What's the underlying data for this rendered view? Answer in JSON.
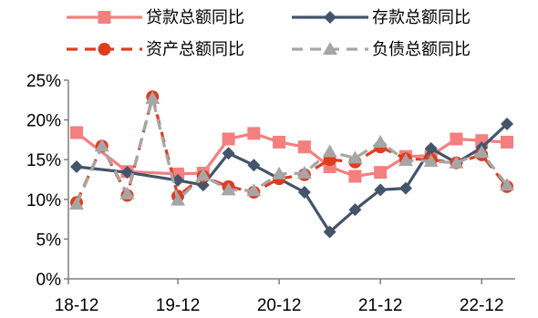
{
  "chart_data": {
    "type": "line",
    "title": "",
    "xlabel": "",
    "ylabel": "",
    "ylim": [
      0,
      25
    ],
    "yticks": [
      "0%",
      "5%",
      "10%",
      "15%",
      "20%",
      "25%"
    ],
    "xticks": [
      "18-12",
      "19-12",
      "20-12",
      "21-12",
      "22-12"
    ],
    "grid": false,
    "legend_position": "top",
    "x": [
      "18-12",
      "19-03",
      "19-06",
      "19-09",
      "19-12",
      "20-03",
      "20-06",
      "20-09",
      "20-12",
      "21-03",
      "21-06",
      "21-09",
      "21-12",
      "22-03",
      "22-06",
      "22-09",
      "22-12",
      "23-03"
    ],
    "series": [
      {
        "name": "贷款总额同比",
        "color": "#F47F7F",
        "style": "solid",
        "marker": "square",
        "points": [
          [
            0,
            18.4
          ],
          [
            2,
            13.5
          ],
          [
            4,
            13.2
          ],
          [
            5,
            13.3
          ],
          [
            6,
            17.6
          ],
          [
            7,
            18.3
          ],
          [
            8,
            17.2
          ],
          [
            9,
            16.6
          ],
          [
            10,
            14.1
          ],
          [
            11,
            12.9
          ],
          [
            12,
            13.4
          ],
          [
            13,
            15.4
          ],
          [
            14,
            15.5
          ],
          [
            15,
            17.6
          ],
          [
            16,
            17.4
          ],
          [
            17,
            17.2
          ]
        ]
      },
      {
        "name": "存款总额同比",
        "color": "#44546A",
        "style": "solid",
        "marker": "diamond",
        "points": [
          [
            0,
            14.1
          ],
          [
            2,
            13.4
          ],
          [
            4,
            12.4
          ],
          [
            5,
            11.8
          ],
          [
            6,
            15.8
          ],
          [
            7,
            14.3
          ],
          [
            8,
            12.6
          ],
          [
            9,
            10.9
          ],
          [
            10,
            5.9
          ],
          [
            11,
            8.7
          ],
          [
            12,
            11.2
          ],
          [
            13,
            11.4
          ],
          [
            14,
            16.4
          ],
          [
            15,
            14.6
          ],
          [
            16,
            16.5
          ],
          [
            17,
            19.5
          ]
        ]
      },
      {
        "name": "资产总额同比",
        "color": "#E03C1E",
        "style": "dashed",
        "marker": "circle",
        "points": [
          [
            0,
            9.6
          ],
          [
            1,
            16.7
          ],
          [
            2,
            10.5
          ],
          [
            3,
            22.9
          ],
          [
            4,
            10.4
          ],
          [
            5,
            12.9
          ],
          [
            6,
            11.6
          ],
          [
            7,
            10.9
          ],
          [
            8,
            12.6
          ],
          [
            9,
            13.1
          ],
          [
            10,
            15.0
          ],
          [
            11,
            14.7
          ],
          [
            12,
            16.6
          ],
          [
            13,
            15.1
          ],
          [
            14,
            15.0
          ],
          [
            15,
            14.6
          ],
          [
            16,
            15.6
          ],
          [
            17,
            11.6
          ]
        ]
      },
      {
        "name": "负债总额同比",
        "color": "#A6A6A6",
        "style": "dashed",
        "marker": "triangle",
        "points": [
          [
            0,
            9.4
          ],
          [
            1,
            16.7
          ],
          [
            2,
            10.7
          ],
          [
            3,
            22.7
          ],
          [
            4,
            9.9
          ],
          [
            5,
            13.0
          ],
          [
            6,
            11.2
          ],
          [
            7,
            11.1
          ],
          [
            8,
            13.2
          ],
          [
            9,
            13.3
          ],
          [
            10,
            16.0
          ],
          [
            11,
            15.2
          ],
          [
            12,
            17.2
          ],
          [
            13,
            14.9
          ],
          [
            14,
            14.8
          ],
          [
            15,
            14.6
          ],
          [
            16,
            15.9
          ],
          [
            17,
            11.8
          ]
        ]
      }
    ]
  }
}
